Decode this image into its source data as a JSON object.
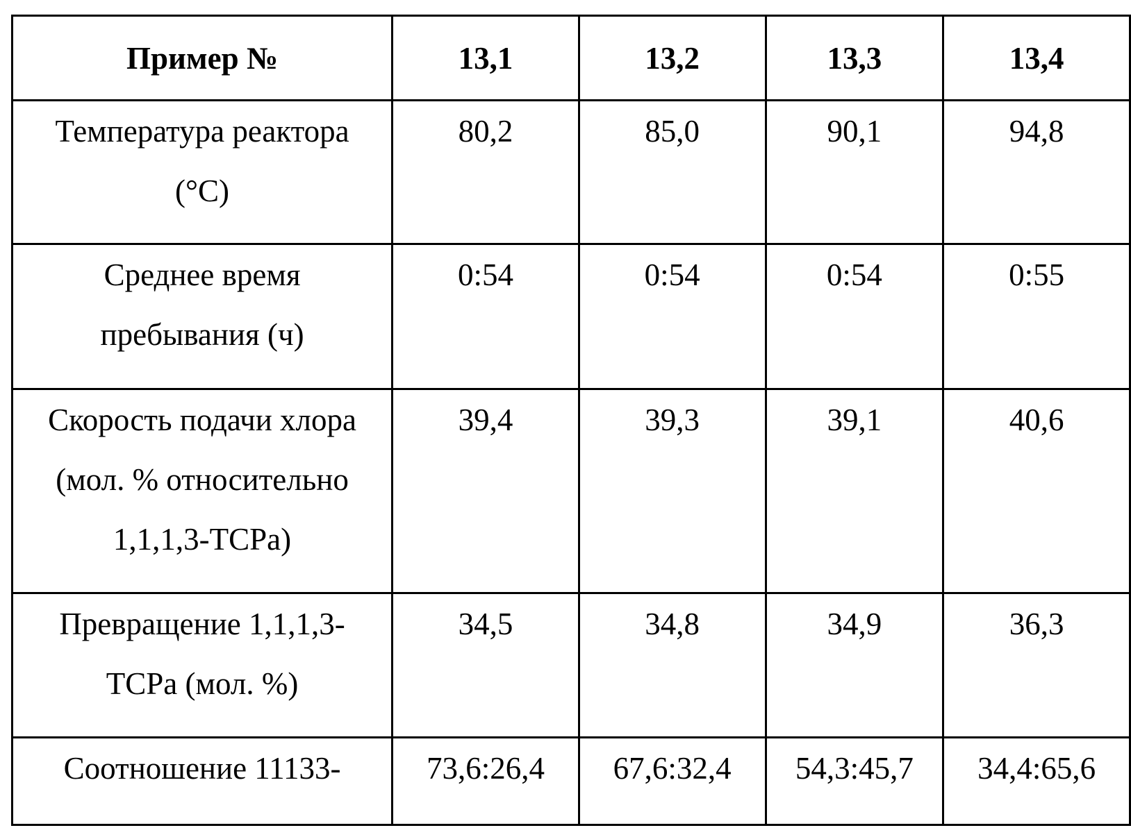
{
  "table": {
    "header": {
      "label": "Пример №",
      "columns": [
        "13,1",
        "13,2",
        "13,3",
        "13,4"
      ]
    },
    "rows": [
      {
        "label": "Температура реактора\n(°C)",
        "values": [
          "80,2",
          "85,0",
          "90,1",
          "94,8"
        ]
      },
      {
        "label": "Среднее время\nпребывания (ч)",
        "values": [
          "0:54",
          "0:54",
          "0:54",
          "0:55"
        ]
      },
      {
        "label": "Скорость подачи хлора\n(мол.  % относительно\n1,1,1,3-TCPa)",
        "values": [
          "39,4",
          "39,3",
          "39,1",
          "40,6"
        ]
      },
      {
        "label": "Превращение 1,1,1,3-\nTCPa (мол.  %)",
        "values": [
          "34,5",
          "34,8",
          "34,9",
          "36,3"
        ]
      },
      {
        "label": "Соотношение 11133-",
        "values": [
          "73,6:26,4",
          "67,6:32,4",
          "54,3:45,7",
          "34,4:65,6"
        ]
      }
    ]
  }
}
